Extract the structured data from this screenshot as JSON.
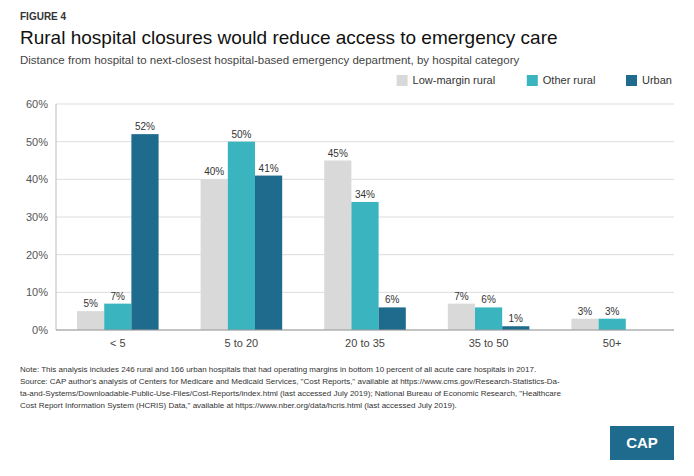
{
  "chart_data": {
    "type": "bar",
    "title": "Rural hospital closures would reduce access to emergency care",
    "subtitle": "Distance from hospital to next-closest hospital-based emergency department, by hospital category",
    "annotations": [
      "FIGURE 4",
      "Note: This analysis includes 246 rural and 166 urban hospitals that had operating margins in bottom 10 percent of all acute care hospitals in 2017.",
      "Source: CAP author's analysis of Centers for Medicare and Medicaid Services, \"Cost Reports,\" available at https://www.cms.gov/Research-Statistics-Da-",
      "ta-and-Systems/Downloadable-Public-Use-Files/Cost-Reports/index.html (last accessed July 2019); National Bureau of Economic Research, \"Healthcare",
      "Cost Report Information System (HCRIS) Data,\" available at https://www.nber.org/data/hcris.html (last accessed July 2019).",
      "CAP"
    ],
    "categories": [
      "< 5",
      "5 to 20",
      "20 to 35",
      "35 to 50",
      "50+"
    ],
    "series": [
      {
        "name": "Low-margin rural",
        "color": "#d9d9d9",
        "values": [
          5,
          40,
          45,
          7,
          3
        ],
        "value_labels": [
          "5%",
          "40%",
          "45%",
          "7%",
          "3%"
        ]
      },
      {
        "name": "Other rural",
        "color": "#3ab5c0",
        "values": [
          7,
          50,
          34,
          6,
          3
        ],
        "value_labels": [
          "7%",
          "50%",
          "34%",
          "6%",
          "3%"
        ]
      },
      {
        "name": "Urban",
        "color": "#1f6b8e",
        "values": [
          52,
          41,
          6,
          1,
          0
        ],
        "value_labels": [
          "52%",
          "41%",
          "6%",
          "1%",
          null
        ]
      }
    ],
    "ylim": [
      0,
      60
    ],
    "yticks": [
      {
        "value": 0,
        "label": "0%"
      },
      {
        "value": 10,
        "label": "10%"
      },
      {
        "value": 20,
        "label": "20%"
      },
      {
        "value": 30,
        "label": "30%"
      },
      {
        "value": 40,
        "label": "40%"
      },
      {
        "value": 50,
        "label": "50%"
      },
      {
        "value": 60,
        "label": "60%"
      }
    ],
    "grid": true,
    "legend": "top-right",
    "data_labels": true
  }
}
